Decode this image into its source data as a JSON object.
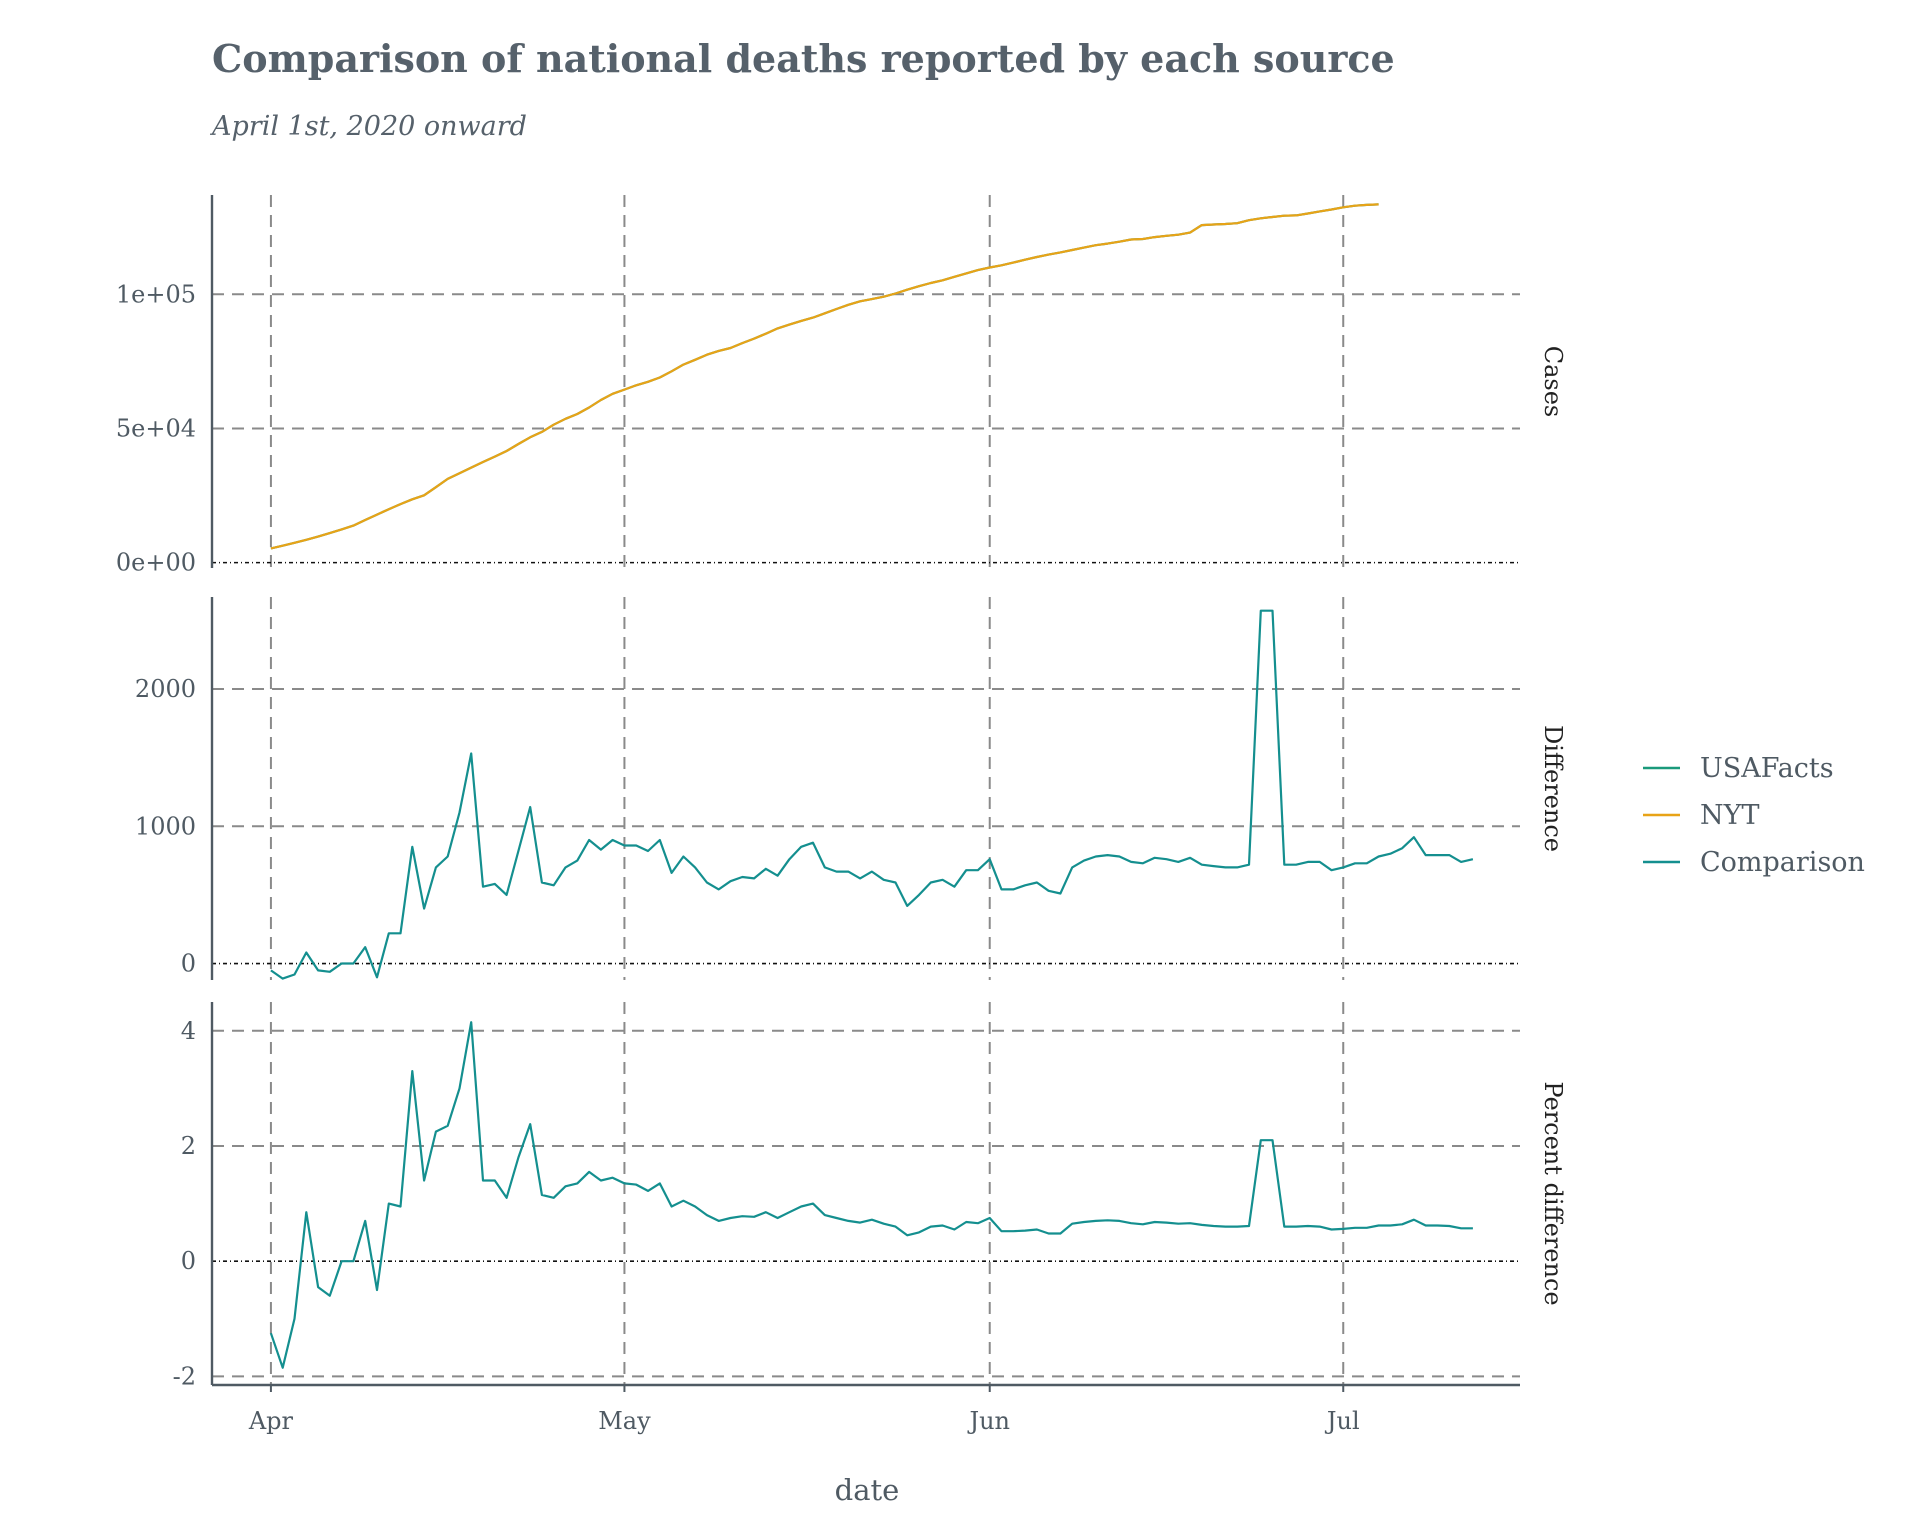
{
  "title": "Comparison of national deaths reported by each source",
  "subtitle": "April 1st, 2020 onward",
  "chart_data": {
    "type": "line",
    "title": "Comparison of national deaths reported by each source",
    "subtitle": "April 1st, 2020 onward",
    "xlabel": "date",
    "x_ticks": [
      "Apr",
      "May",
      "Jun",
      "Jul"
    ],
    "x_tick_dates": [
      "2020-04-01",
      "2020-05-01",
      "2020-06-01",
      "2020-07-01"
    ],
    "xlim": [
      "2020-03-27",
      "2020-07-16"
    ],
    "grid": true,
    "legend_position": "right",
    "legend": [
      {
        "name": "USAFacts",
        "color": "#1a9a7b"
      },
      {
        "name": "NYT",
        "color": "#e8a317"
      },
      {
        "name": "Comparison",
        "color": "#148f8f"
      }
    ],
    "x_start_date": "2020-04-01",
    "panels": [
      {
        "label": "Cases",
        "ylim": [
          -2000,
          137000
        ],
        "y_ticks": [
          0,
          50000,
          100000
        ],
        "y_tick_labels": [
          "0e+00",
          "5e+04",
          "1e+05"
        ],
        "series": [
          {
            "name": "USAFacts",
            "color": "#1a9a7b",
            "values": [
              5300,
              6300,
              7400,
              8500,
              9700,
              11000,
              12400,
              13800,
              15900,
              17900,
              19900,
              21800,
              23600,
              25100,
              28100,
              31200,
              33300,
              35400,
              37500,
              39500,
              41600,
              44200,
              46700,
              48700,
              51400,
              53600,
              55400,
              57800,
              60600,
              62900,
              64500,
              66100,
              67400,
              69000,
              71300,
              73800,
              75600,
              77500,
              78900,
              80000,
              81800,
              83500,
              85300,
              87300,
              88700,
              90100,
              91300,
              92900,
              94500,
              96100,
              97400,
              98200,
              99100,
              100300,
              101700,
              103000,
              104200,
              105200,
              106500,
              107800,
              109000,
              110000,
              110800,
              111800,
              112900,
              113900,
              114800,
              115600,
              116500,
              117400,
              118300,
              118900,
              119600,
              120400,
              120600,
              121300,
              121800,
              122200,
              123000,
              125800,
              126000,
              126200,
              126500,
              127600,
              128300,
              128800,
              129300,
              129400,
              130100,
              130900,
              131600,
              132400,
              133000,
              133300,
              133500
            ]
          },
          {
            "name": "NYT",
            "color": "#e8a317",
            "values": [
              5300,
              6300,
              7400,
              8500,
              9700,
              11000,
              12400,
              13800,
              15900,
              17900,
              19900,
              21800,
              23600,
              25100,
              28100,
              31200,
              33300,
              35400,
              37500,
              39500,
              41600,
              44200,
              46700,
              48700,
              51400,
              53600,
              55400,
              57800,
              60600,
              62900,
              64500,
              66100,
              67400,
              69000,
              71300,
              73800,
              75600,
              77500,
              78900,
              80000,
              81800,
              83500,
              85300,
              87300,
              88700,
              90100,
              91300,
              92900,
              94500,
              96100,
              97400,
              98200,
              99100,
              100300,
              101700,
              103000,
              104200,
              105200,
              106500,
              107800,
              109000,
              110000,
              110800,
              111800,
              112900,
              113900,
              114800,
              115600,
              116500,
              117400,
              118300,
              118900,
              119600,
              120400,
              120600,
              121300,
              121800,
              122200,
              123000,
              125800,
              126000,
              126200,
              126500,
              127600,
              128300,
              128800,
              129300,
              129400,
              130100,
              130900,
              131600,
              132400,
              133000,
              133300,
              133500
            ]
          }
        ]
      },
      {
        "label": "Difference",
        "ylim": [
          -120,
          2670
        ],
        "y_ticks": [
          0,
          1000,
          2000
        ],
        "y_tick_labels": [
          "0",
          "1000",
          "2000"
        ],
        "series": [
          {
            "name": "Comparison",
            "color": "#148f8f",
            "values": [
              -50,
              -110,
              -80,
              80,
              -50,
              -60,
              0,
              0,
              120,
              -100,
              220,
              220,
              850,
              400,
              700,
              780,
              1100,
              1530,
              560,
              580,
              500,
              820,
              1140,
              590,
              570,
              700,
              750,
              900,
              830,
              900,
              860,
              860,
              820,
              900,
              660,
              780,
              700,
              590,
              540,
              600,
              630,
              620,
              690,
              640,
              760,
              850,
              880,
              700,
              670,
              670,
              620,
              670,
              610,
              590,
              420,
              500,
              590,
              610,
              560,
              680,
              680,
              760,
              540,
              540,
              570,
              590,
              530,
              510,
              700,
              750,
              780,
              790,
              780,
              740,
              730,
              770,
              760,
              740,
              770,
              720,
              710,
              700,
              700,
              720,
              2570,
              2570,
              720,
              720,
              740,
              740,
              680,
              700,
              730,
              730,
              780,
              800,
              840,
              920,
              790,
              790,
              790,
              740,
              760
            ]
          }
        ]
      },
      {
        "label": "Percent difference",
        "ylim": [
          -2.15,
          4.5
        ],
        "y_ticks": [
          -2,
          0,
          2,
          4
        ],
        "y_tick_labels": [
          "-2",
          "0",
          "2",
          "4"
        ],
        "series": [
          {
            "name": "Comparison",
            "color": "#148f8f",
            "values": [
              -1.25,
              -1.85,
              -1.0,
              0.85,
              -0.45,
              -0.6,
              0.0,
              0.0,
              0.7,
              -0.5,
              1.0,
              0.95,
              3.3,
              1.4,
              2.25,
              2.35,
              3.0,
              4.15,
              1.4,
              1.4,
              1.1,
              1.8,
              2.38,
              1.15,
              1.1,
              1.3,
              1.35,
              1.55,
              1.4,
              1.45,
              1.35,
              1.33,
              1.22,
              1.35,
              0.95,
              1.05,
              0.95,
              0.8,
              0.7,
              0.75,
              0.78,
              0.77,
              0.85,
              0.75,
              0.85,
              0.95,
              1.0,
              0.8,
              0.75,
              0.7,
              0.67,
              0.72,
              0.65,
              0.6,
              0.45,
              0.5,
              0.6,
              0.62,
              0.55,
              0.68,
              0.66,
              0.75,
              0.52,
              0.52,
              0.53,
              0.55,
              0.48,
              0.48,
              0.65,
              0.68,
              0.7,
              0.71,
              0.7,
              0.66,
              0.64,
              0.68,
              0.67,
              0.65,
              0.66,
              0.63,
              0.61,
              0.6,
              0.6,
              0.61,
              2.1,
              2.1,
              0.6,
              0.6,
              0.61,
              0.6,
              0.55,
              0.56,
              0.58,
              0.58,
              0.62,
              0.62,
              0.64,
              0.72,
              0.62,
              0.62,
              0.61,
              0.57,
              0.57
            ]
          }
        ]
      }
    ]
  }
}
